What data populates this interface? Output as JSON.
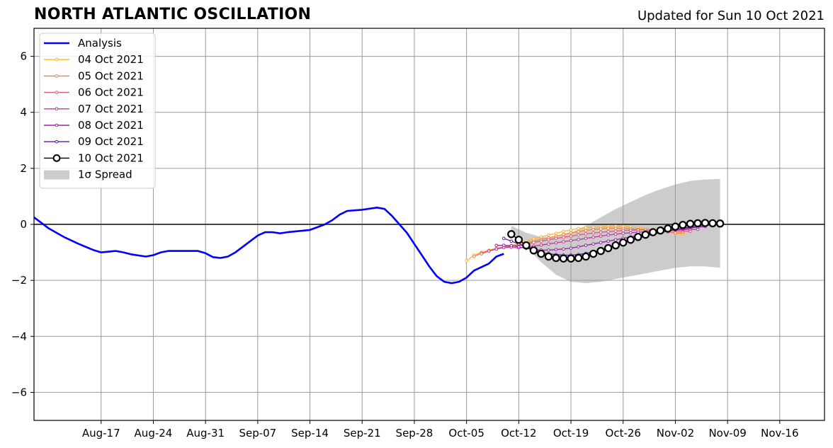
{
  "header": {
    "title": "NORTH ATLANTIC OSCILLATION",
    "subtitle": "Updated for Sun 10 Oct 2021"
  },
  "chart_data": {
    "type": "line",
    "title": "NORTH ATLANTIC OSCILLATION",
    "subtitle": "Updated for Sun 10 Oct 2021",
    "xlabel": "",
    "ylabel": "",
    "xlim": [
      "2021-08-08",
      "2021-11-22"
    ],
    "ylim": [
      -7,
      7
    ],
    "x_ticks": [
      "Aug-17",
      "Aug-24",
      "Aug-31",
      "Sep-07",
      "Sep-14",
      "Sep-21",
      "Sep-28",
      "Oct-05",
      "Oct-12",
      "Oct-19",
      "Oct-26",
      "Nov-02",
      "Nov-09",
      "Nov-16"
    ],
    "x_tick_dates": [
      "2021-08-17",
      "2021-08-24",
      "2021-08-31",
      "2021-09-07",
      "2021-09-14",
      "2021-09-21",
      "2021-09-28",
      "2021-10-05",
      "2021-10-12",
      "2021-10-19",
      "2021-10-26",
      "2021-11-02",
      "2021-11-09",
      "2021-11-16"
    ],
    "y_ticks": [
      -6,
      -4,
      -2,
      0,
      2,
      4,
      6
    ],
    "y_tick_labels": [
      "−6",
      "−4",
      "−2",
      "0",
      "2",
      "4",
      "6"
    ],
    "grid": true,
    "zero_line": true,
    "legend_position": "top-left",
    "legend": [
      "Analysis",
      "04 Oct 2021",
      "05 Oct 2021",
      "06 Oct 2021",
      "07 Oct 2021",
      "08 Oct 2021",
      "09 Oct 2021",
      "10 Oct 2021",
      "1σ Spread"
    ],
    "spread": {
      "name": "1σ Spread",
      "color": "#cccccc",
      "x": [
        "2021-10-11",
        "2021-10-13",
        "2021-10-15",
        "2021-10-17",
        "2021-10-19",
        "2021-10-21",
        "2021-10-23",
        "2021-10-25",
        "2021-10-27",
        "2021-10-29",
        "2021-10-31",
        "2021-11-02",
        "2021-11-04",
        "2021-11-06",
        "2021-11-08"
      ],
      "lower": [
        -0.25,
        -0.8,
        -1.35,
        -1.8,
        -2.05,
        -2.1,
        -2.05,
        -1.95,
        -1.85,
        -1.75,
        -1.65,
        -1.55,
        -1.5,
        -1.5,
        -1.55
      ],
      "upper": [
        -0.05,
        -0.3,
        -0.45,
        -0.45,
        -0.3,
        -0.05,
        0.25,
        0.55,
        0.8,
        1.05,
        1.25,
        1.42,
        1.55,
        1.6,
        1.62
      ]
    },
    "series": [
      {
        "name": "Analysis",
        "color": "#0000ff",
        "marker": "none",
        "x": [
          "2021-08-08",
          "2021-08-10",
          "2021-08-12",
          "2021-08-14",
          "2021-08-16",
          "2021-08-17",
          "2021-08-19",
          "2021-08-20",
          "2021-08-21",
          "2021-08-23",
          "2021-08-24",
          "2021-08-25",
          "2021-08-26",
          "2021-08-28",
          "2021-08-30",
          "2021-08-31",
          "2021-09-01",
          "2021-09-02",
          "2021-09-03",
          "2021-09-04",
          "2021-09-05",
          "2021-09-07",
          "2021-09-08",
          "2021-09-09",
          "2021-09-10",
          "2021-09-11",
          "2021-09-14",
          "2021-09-15",
          "2021-09-16",
          "2021-09-17",
          "2021-09-18",
          "2021-09-19",
          "2021-09-21",
          "2021-09-23",
          "2021-09-24",
          "2021-09-25",
          "2021-09-26",
          "2021-09-27",
          "2021-09-28",
          "2021-09-29",
          "2021-09-30",
          "2021-10-01",
          "2021-10-02",
          "2021-10-03",
          "2021-10-04",
          "2021-10-05",
          "2021-10-06",
          "2021-10-08",
          "2021-10-09",
          "2021-10-10"
        ],
        "values": [
          0.25,
          -0.15,
          -0.45,
          -0.7,
          -0.92,
          -1.0,
          -0.95,
          -1.0,
          -1.07,
          -1.15,
          -1.1,
          -1.0,
          -0.95,
          -0.95,
          -0.95,
          -1.03,
          -1.17,
          -1.2,
          -1.15,
          -1.0,
          -0.8,
          -0.4,
          -0.28,
          -0.28,
          -0.32,
          -0.28,
          -0.2,
          -0.1,
          0.0,
          0.15,
          0.35,
          0.48,
          0.52,
          0.6,
          0.55,
          0.3,
          0.0,
          -0.3,
          -0.7,
          -1.1,
          -1.5,
          -1.85,
          -2.05,
          -2.1,
          -2.05,
          -1.9,
          -1.65,
          -1.4,
          -1.15,
          -1.05
        ]
      },
      {
        "name": "04 Oct 2021",
        "color": "#fcb42d",
        "marker": "small-dot",
        "x": [
          "2021-10-05",
          "2021-10-06",
          "2021-10-07",
          "2021-10-08",
          "2021-10-09",
          "2021-10-10",
          "2021-10-11",
          "2021-10-12",
          "2021-10-13",
          "2021-10-14",
          "2021-10-15",
          "2021-10-16",
          "2021-10-17",
          "2021-10-18",
          "2021-10-19",
          "2021-10-20",
          "2021-10-21",
          "2021-10-22",
          "2021-10-23",
          "2021-10-24",
          "2021-10-25",
          "2021-10-26",
          "2021-10-27",
          "2021-10-28",
          "2021-10-29",
          "2021-10-30",
          "2021-10-31",
          "2021-11-01",
          "2021-11-02",
          "2021-11-03"
        ],
        "values": [
          -1.3,
          -1.1,
          -1.0,
          -0.92,
          -0.85,
          -0.8,
          -0.75,
          -0.68,
          -0.6,
          -0.52,
          -0.45,
          -0.38,
          -0.32,
          -0.25,
          -0.2,
          -0.15,
          -0.12,
          -0.1,
          -0.1,
          -0.08,
          -0.07,
          -0.08,
          -0.1,
          -0.13,
          -0.15,
          -0.18,
          -0.22,
          -0.28,
          -0.32,
          -0.35
        ]
      },
      {
        "name": "05 Oct 2021",
        "color": "#f0804b",
        "marker": "small-dot",
        "x": [
          "2021-10-06",
          "2021-10-07",
          "2021-10-08",
          "2021-10-09",
          "2021-10-10",
          "2021-10-11",
          "2021-10-12",
          "2021-10-13",
          "2021-10-14",
          "2021-10-15",
          "2021-10-16",
          "2021-10-17",
          "2021-10-18",
          "2021-10-19",
          "2021-10-20",
          "2021-10-21",
          "2021-10-22",
          "2021-10-23",
          "2021-10-24",
          "2021-10-25",
          "2021-10-26",
          "2021-10-27",
          "2021-10-28",
          "2021-10-29",
          "2021-10-30",
          "2021-10-31",
          "2021-11-01",
          "2021-11-02",
          "2021-11-03"
        ],
        "values": [
          -1.15,
          -1.02,
          -0.95,
          -0.88,
          -0.82,
          -0.78,
          -0.72,
          -0.66,
          -0.6,
          -0.54,
          -0.48,
          -0.42,
          -0.36,
          -0.3,
          -0.26,
          -0.22,
          -0.18,
          -0.16,
          -0.14,
          -0.14,
          -0.15,
          -0.16,
          -0.18,
          -0.2,
          -0.22,
          -0.25,
          -0.27,
          -0.3,
          -0.3
        ]
      },
      {
        "name": "06 Oct 2021",
        "color": "#dc5a78",
        "marker": "small-dot",
        "x": [
          "2021-10-07",
          "2021-10-08",
          "2021-10-09",
          "2021-10-10",
          "2021-10-11",
          "2021-10-12",
          "2021-10-13",
          "2021-10-14",
          "2021-10-15",
          "2021-10-16",
          "2021-10-17",
          "2021-10-18",
          "2021-10-19",
          "2021-10-20",
          "2021-10-21",
          "2021-10-22",
          "2021-10-23",
          "2021-10-24",
          "2021-10-25",
          "2021-10-26",
          "2021-10-27",
          "2021-10-28",
          "2021-10-29",
          "2021-10-30",
          "2021-10-31",
          "2021-11-01",
          "2021-11-02",
          "2021-11-03",
          "2021-11-04"
        ],
        "values": [
          -1.05,
          -0.95,
          -0.88,
          -0.82,
          -0.78,
          -0.75,
          -0.7,
          -0.65,
          -0.6,
          -0.55,
          -0.5,
          -0.46,
          -0.42,
          -0.38,
          -0.34,
          -0.31,
          -0.28,
          -0.26,
          -0.24,
          -0.22,
          -0.21,
          -0.2,
          -0.2,
          -0.2,
          -0.21,
          -0.22,
          -0.23,
          -0.24,
          -0.25
        ]
      },
      {
        "name": "07 Oct 2021",
        "color": "#b83c9c",
        "marker": "small-dot",
        "x": [
          "2021-10-08",
          "2021-10-09",
          "2021-10-10",
          "2021-10-11",
          "2021-10-12",
          "2021-10-13",
          "2021-10-14",
          "2021-10-15",
          "2021-10-16",
          "2021-10-17",
          "2021-10-18",
          "2021-10-19",
          "2021-10-20",
          "2021-10-21",
          "2021-10-22",
          "2021-10-23",
          "2021-10-24",
          "2021-10-25",
          "2021-10-26",
          "2021-10-27",
          "2021-10-28",
          "2021-10-29",
          "2021-10-30",
          "2021-10-31",
          "2021-11-01",
          "2021-11-02",
          "2021-11-03",
          "2021-11-04",
          "2021-11-05"
        ],
        "values": [
          -0.95,
          -0.88,
          -0.83,
          -0.82,
          -0.84,
          -0.82,
          -0.78,
          -0.74,
          -0.7,
          -0.66,
          -0.62,
          -0.58,
          -0.54,
          -0.5,
          -0.46,
          -0.42,
          -0.38,
          -0.35,
          -0.32,
          -0.3,
          -0.28,
          -0.26,
          -0.24,
          -0.22,
          -0.21,
          -0.2,
          -0.19,
          -0.18,
          -0.18
        ]
      },
      {
        "name": "08 Oct 2021",
        "color": "#9c23a8",
        "marker": "small-dot",
        "x": [
          "2021-10-09",
          "2021-10-10",
          "2021-10-11",
          "2021-10-12",
          "2021-10-13",
          "2021-10-14",
          "2021-10-15",
          "2021-10-16",
          "2021-10-17",
          "2021-10-18",
          "2021-10-19",
          "2021-10-20",
          "2021-10-21",
          "2021-10-22",
          "2021-10-23",
          "2021-10-24",
          "2021-10-25",
          "2021-10-26",
          "2021-10-27",
          "2021-10-28",
          "2021-10-29",
          "2021-10-30",
          "2021-10-31",
          "2021-11-01",
          "2021-11-02",
          "2021-11-03",
          "2021-11-04",
          "2021-11-05",
          "2021-11-06"
        ],
        "values": [
          -0.75,
          -0.75,
          -0.76,
          -0.8,
          -0.86,
          -0.9,
          -0.92,
          -0.92,
          -0.9,
          -0.88,
          -0.85,
          -0.8,
          -0.75,
          -0.7,
          -0.65,
          -0.6,
          -0.55,
          -0.5,
          -0.45,
          -0.4,
          -0.35,
          -0.3,
          -0.26,
          -0.22,
          -0.19,
          -0.16,
          -0.13,
          -0.1,
          -0.08
        ]
      },
      {
        "name": "09 Oct 2021",
        "color": "#5a1aa0",
        "marker": "small-dot",
        "x": [
          "2021-10-10",
          "2021-10-11",
          "2021-10-12",
          "2021-10-13",
          "2021-10-14",
          "2021-10-15",
          "2021-10-16",
          "2021-10-17",
          "2021-10-18",
          "2021-10-19",
          "2021-10-20",
          "2021-10-21",
          "2021-10-22",
          "2021-10-23",
          "2021-10-24",
          "2021-10-25",
          "2021-10-26",
          "2021-10-27",
          "2021-10-28",
          "2021-10-29",
          "2021-10-30",
          "2021-10-31",
          "2021-11-01",
          "2021-11-02",
          "2021-11-03",
          "2021-11-04",
          "2021-11-05",
          "2021-11-06",
          "2021-11-07"
        ],
        "values": [
          -0.5,
          -0.6,
          -0.7,
          -0.82,
          -0.92,
          -1.0,
          -1.05,
          -1.08,
          -1.1,
          -1.1,
          -1.08,
          -1.04,
          -0.98,
          -0.9,
          -0.82,
          -0.74,
          -0.66,
          -0.58,
          -0.5,
          -0.42,
          -0.36,
          -0.3,
          -0.24,
          -0.19,
          -0.14,
          -0.1,
          -0.06,
          -0.04,
          -0.02
        ]
      },
      {
        "name": "10 Oct 2021",
        "color": "#000000",
        "marker": "circle",
        "x": [
          "2021-10-11",
          "2021-10-12",
          "2021-10-13",
          "2021-10-14",
          "2021-10-15",
          "2021-10-16",
          "2021-10-17",
          "2021-10-18",
          "2021-10-19",
          "2021-10-20",
          "2021-10-21",
          "2021-10-22",
          "2021-10-23",
          "2021-10-24",
          "2021-10-25",
          "2021-10-26",
          "2021-10-27",
          "2021-10-28",
          "2021-10-29",
          "2021-10-30",
          "2021-10-31",
          "2021-11-01",
          "2021-11-02",
          "2021-11-03",
          "2021-11-04",
          "2021-11-05",
          "2021-11-06",
          "2021-11-07",
          "2021-11-08"
        ],
        "values": [
          -0.35,
          -0.55,
          -0.75,
          -0.93,
          -1.05,
          -1.15,
          -1.2,
          -1.22,
          -1.22,
          -1.2,
          -1.15,
          -1.05,
          -0.95,
          -0.85,
          -0.75,
          -0.65,
          -0.55,
          -0.45,
          -0.37,
          -0.28,
          -0.22,
          -0.15,
          -0.08,
          -0.02,
          0.02,
          0.04,
          0.05,
          0.04,
          0.03
        ]
      }
    ]
  }
}
